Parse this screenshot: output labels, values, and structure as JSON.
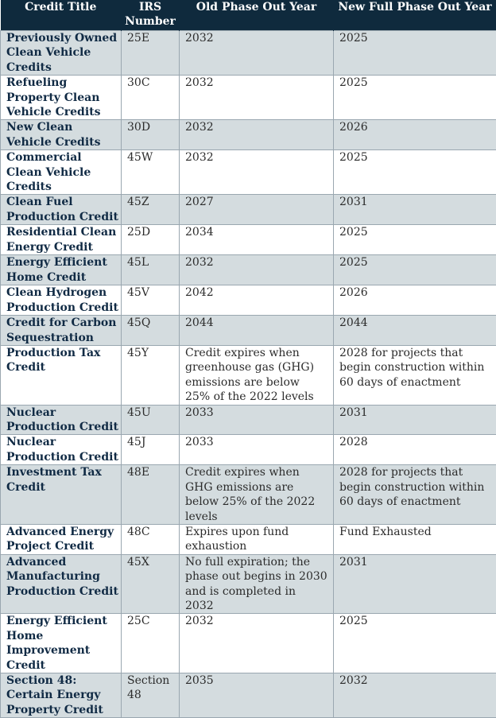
{
  "headers": [
    "Credit Title",
    "IRS Number",
    "Old Phase Out Year",
    "New Full Phase Out Year"
  ],
  "rows": [
    [
      "Previously Owned Clean Vehicle Credits",
      "25E",
      "2032",
      "2025"
    ],
    [
      "Refueling Property Clean Vehicle Credits",
      "30C",
      "2032",
      "2025"
    ],
    [
      "New Clean Vehicle Credits",
      "30D",
      "2032",
      "2026"
    ],
    [
      "Commercial Clean Vehicle Credits",
      "45W",
      "2032",
      "2025"
    ],
    [
      "Clean Fuel Production Credit",
      "45Z",
      "2027",
      "2031"
    ],
    [
      "Residential Clean Energy Credit",
      "25D",
      "2034",
      "2025"
    ],
    [
      "Energy Efficient Home Credit",
      "45L",
      "2032",
      "2025"
    ],
    [
      "Clean Hydrogen Production Credit",
      "45V",
      "2042",
      "2026"
    ],
    [
      "Credit for Carbon Sequestration",
      "45Q",
      "2044",
      "2044"
    ],
    [
      "Production Tax Credit",
      "45Y",
      "Credit expires when greenhouse gas (GHG) emissions are below 25% of the 2022 levels",
      "2028 for projects that begin construction within 60 days of enactment"
    ],
    [
      "Nuclear Production Credit",
      "45U",
      "2033",
      "2031"
    ],
    [
      "Nuclear Production Credit",
      "45J",
      "2033",
      "2028"
    ],
    [
      "Investment Tax Credit",
      "48E",
      "Credit expires when GHG emissions are below 25% of the 2022 levels",
      "2028 for projects that begin construction within 60 days of enactment"
    ],
    [
      "Advanced Energy Project Credit",
      "48C",
      "Expires upon fund exhaustion",
      "Fund Exhausted"
    ],
    [
      "Advanced Manufacturing Production Credit",
      "45X",
      "No full expiration; the phase out begins in 2030 and is completed in 2032",
      "2031"
    ],
    [
      "Energy Efficient Home Improvement Credit",
      "25C",
      "2032",
      "2025"
    ],
    [
      "Section 48: Certain Energy Property Credit",
      "Section 48",
      "2035",
      "2032"
    ]
  ]
}
